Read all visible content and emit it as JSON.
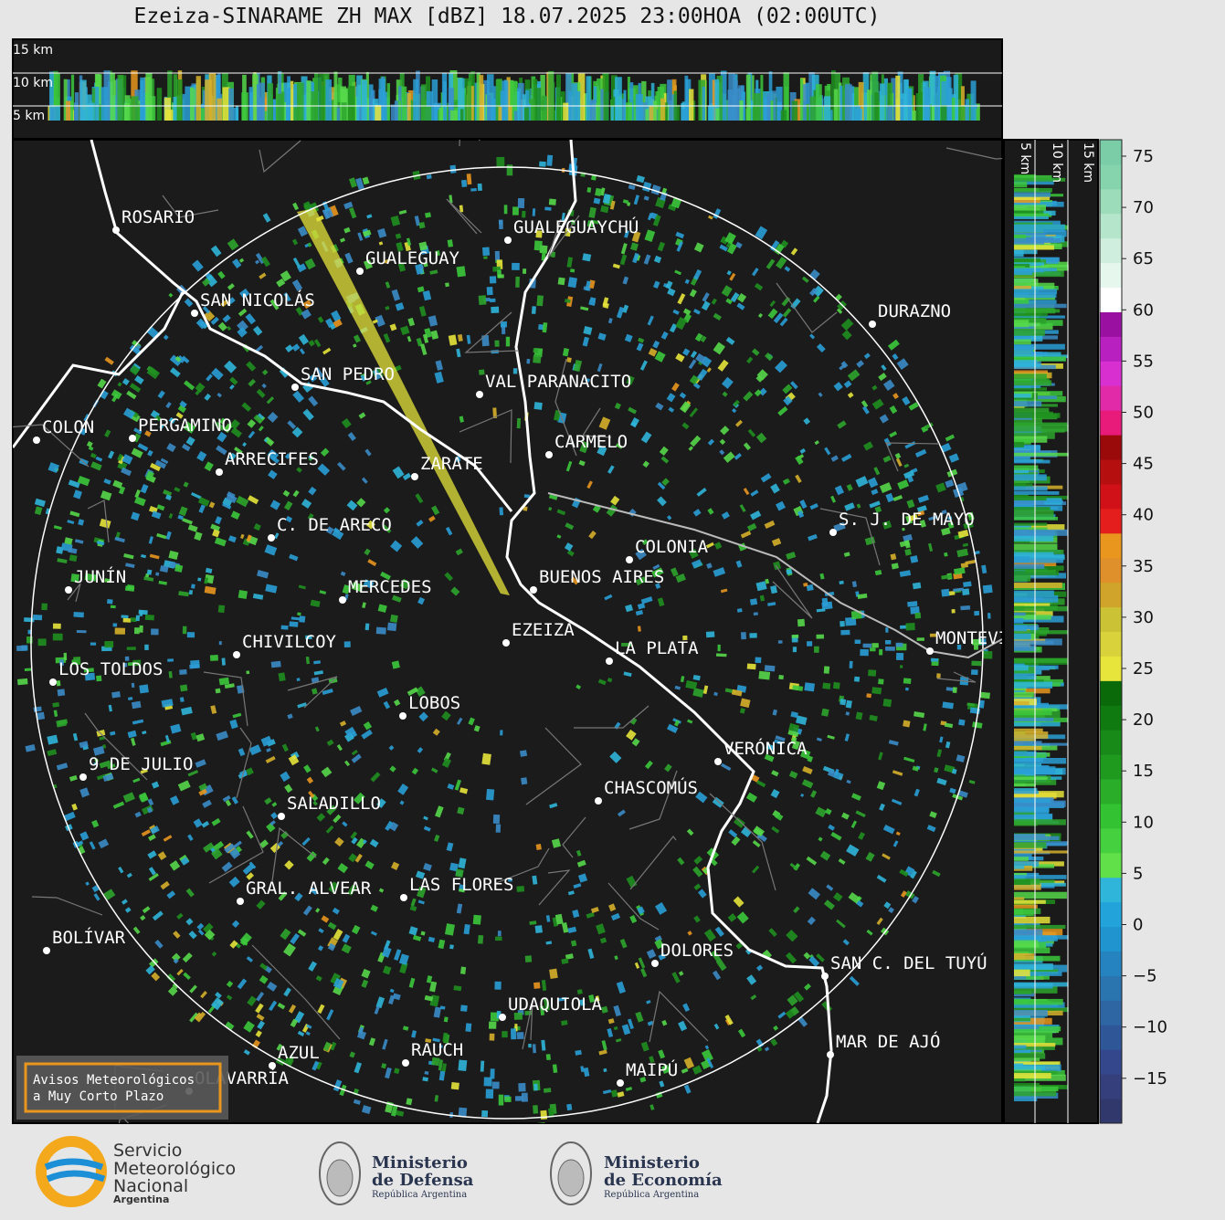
{
  "header": {
    "title": "Ezeiza-SINARAME ZH MAX [dBZ] 18.07.2025 23:00HOA (02:00UTC)"
  },
  "top_panel": {
    "height_labels": [
      "15 km",
      "10 km",
      "5 km"
    ]
  },
  "side_panel": {
    "height_labels": [
      "5 km",
      "10 km",
      "15 km"
    ]
  },
  "colorbar": {
    "ticks": [
      "75",
      "70",
      "65",
      "60",
      "55",
      "50",
      "45",
      "40",
      "35",
      "30",
      "25",
      "20",
      "15",
      "10",
      "5",
      "0",
      "−5",
      "−10",
      "−15"
    ]
  },
  "map": {
    "cities": [
      {
        "name": "ROSARIO"
      },
      {
        "name": "GUALEGUAYCHÚ"
      },
      {
        "name": "GUALEGUAY"
      },
      {
        "name": "SAN NICOLÁS"
      },
      {
        "name": "DURAZNO"
      },
      {
        "name": "SAN PEDRO"
      },
      {
        "name": "VAL PARANACITO"
      },
      {
        "name": "COLON"
      },
      {
        "name": "PERGAMINO"
      },
      {
        "name": "CARMELO"
      },
      {
        "name": "ARRECIFES"
      },
      {
        "name": "ZARATE"
      },
      {
        "name": "S. J. DE MAYO"
      },
      {
        "name": "C. DE ARECO"
      },
      {
        "name": "COLONIA"
      },
      {
        "name": "BUENOS AIRES"
      },
      {
        "name": "JUNÍN"
      },
      {
        "name": "MERCEDES"
      },
      {
        "name": "EZEIZA"
      },
      {
        "name": "MONTEVIDEO"
      },
      {
        "name": "LA PLATA"
      },
      {
        "name": "CHIVILCOY"
      },
      {
        "name": "LOS TOLDOS"
      },
      {
        "name": "LOBOS"
      },
      {
        "name": "VERÓNICA"
      },
      {
        "name": "9 DE JULIO"
      },
      {
        "name": "CHASCOMÚS"
      },
      {
        "name": "SALADILLO"
      },
      {
        "name": "GRAL. ALVEAR"
      },
      {
        "name": "LAS FLORES"
      },
      {
        "name": "BOLÍVAR"
      },
      {
        "name": "DOLORES"
      },
      {
        "name": "SAN C. DEL TUYÚ"
      },
      {
        "name": "UDAQUIOLA"
      },
      {
        "name": "MAR DE AJÓ"
      },
      {
        "name": "AZUL"
      },
      {
        "name": "RAUCH"
      },
      {
        "name": "OLAVARRÍA"
      },
      {
        "name": "MAIPÚ"
      }
    ],
    "alert_button": {
      "line1": "Avisos Meteorológicos",
      "line2": "a Muy Corto Plazo"
    }
  },
  "footer": {
    "smn": {
      "line1": "Servicio",
      "line2": "Meteorológico",
      "line3": "Nacional",
      "line4": "Argentina"
    },
    "defensa": {
      "line1": "Ministerio",
      "line2": "de Defensa",
      "line3": "República Argentina"
    },
    "economia": {
      "line1": "Ministerio",
      "line2": "de Economía",
      "line3": "República Argentina"
    }
  }
}
